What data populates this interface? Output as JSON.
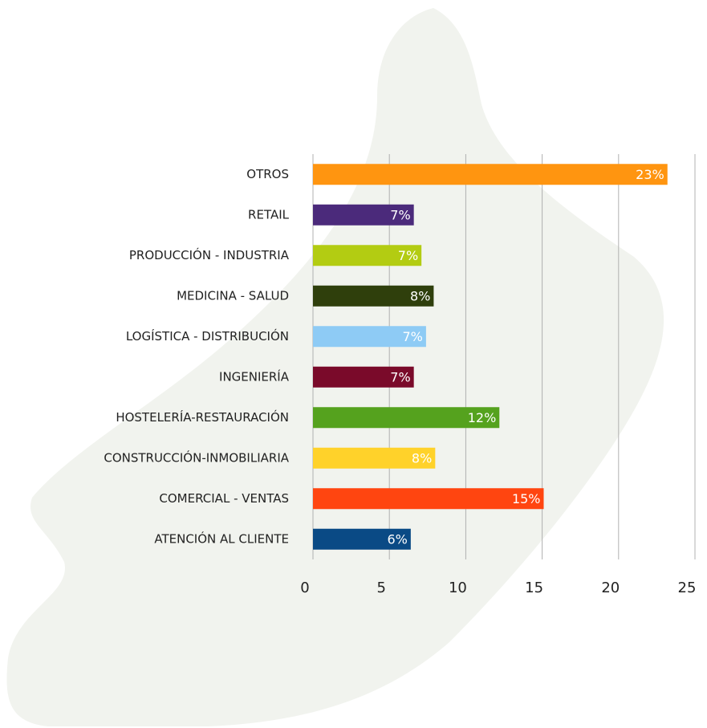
{
  "chart_data": {
    "type": "bar",
    "orientation": "horizontal",
    "categories": [
      "OTROS",
      "RETAIL",
      "PRODUCCIÓN - INDUSTRIA",
      "MEDICINA - SALUD",
      "LOGÍSTICA - DISTRIBUCIÓN",
      "INGENIERÍA",
      "HOSTELERÍA-RESTAURACIÓN",
      "CONSTRUCCIÓN-INMOBILIARIA",
      "COMERCIAL - VENTAS",
      "ATENCIÓN AL CLIENTE"
    ],
    "values": [
      23.2,
      6.6,
      7.1,
      7.9,
      7.4,
      6.6,
      12.2,
      8.0,
      15.1,
      6.4
    ],
    "value_labels": [
      "23%",
      "7%",
      "7%",
      "8%",
      "7%",
      "7%",
      "12%",
      "8%",
      "15%",
      "6%"
    ],
    "colors": [
      "#ff9510",
      "#4b2a7b",
      "#b3cc12",
      "#2f3f0c",
      "#8ecbf5",
      "#7a0a2a",
      "#55a21e",
      "#ffd22a",
      "#ff4510",
      "#0a4a85"
    ],
    "xlim": [
      0,
      25
    ],
    "xticks": [
      0,
      5,
      10,
      15,
      20,
      25
    ],
    "grid": true
  }
}
